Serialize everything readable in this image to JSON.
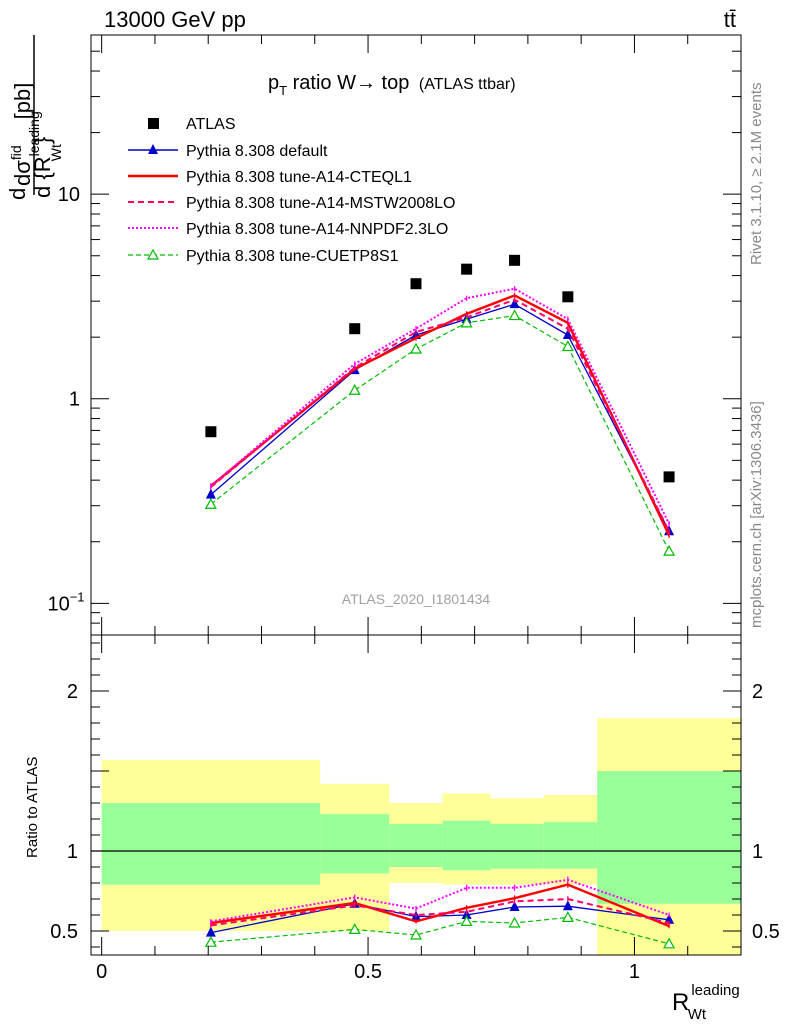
{
  "header": {
    "energy_label": "13000 GeV pp",
    "process_label": "tt̄"
  },
  "side_labels": {
    "rivet": "Rivet 3.1.10, ≥ 2.1M events",
    "mcplots": "mcplots.cern.ch [arXiv:1306.3436]"
  },
  "chart_data": [
    {
      "type": "line",
      "panel": "main",
      "title": "p_T ratio W→ top (ATLAS ttbar)",
      "title_main": "p",
      "title_sub": "T",
      "title_rest": " ratio W→ top",
      "title_small": "(ATLAS ttbar)",
      "watermark": "ATLAS_2020_I1801434",
      "ylabel_parts": {
        "d_num": "d",
        "sigma": "dσ",
        "sup": "fid",
        "unit": "[pb]",
        "den": "d {R",
        "den_sup": "leading",
        "den_sub": "Wt",
        "close": "}"
      },
      "yscale": "log",
      "ylim": [
        0.07,
        60
      ],
      "xlim": [
        -0.02,
        1.2
      ],
      "y_ticks": [
        {
          "value": 0.1,
          "label": "10",
          "sup": "−1"
        },
        {
          "value": 1,
          "label": "1"
        },
        {
          "value": 10,
          "label": "10"
        }
      ],
      "x": [
        0.205,
        0.475,
        0.59,
        0.685,
        0.775,
        0.875,
        1.065
      ],
      "data": {
        "name": "ATLAS",
        "values": [
          0.69,
          2.2,
          3.65,
          4.3,
          4.75,
          3.15,
          0.415
        ]
      },
      "series": [
        {
          "name": "Pythia 8.308 default",
          "color": "#0000cc",
          "style": "solid",
          "marker": "triangle-filled",
          "values": [
            0.34,
            1.38,
            2.05,
            2.45,
            2.9,
            2.05,
            0.225
          ]
        },
        {
          "name": "Pythia 8.308 tune-A14-CTEQL1",
          "color": "#ff0000",
          "style": "solid-thick",
          "marker": "none",
          "values": [
            0.375,
            1.4,
            1.98,
            2.6,
            3.2,
            2.35,
            0.215
          ]
        },
        {
          "name": "Pythia 8.308 tune-A14-MSTW2008LO",
          "color": "#ff0066",
          "style": "dashed",
          "marker": "none",
          "values": [
            0.37,
            1.42,
            2.12,
            2.5,
            3.05,
            2.2,
            0.225
          ]
        },
        {
          "name": "Pythia 8.308 tune-A14-NNPDF2.3LO",
          "color": "#ff00ff",
          "style": "dotted",
          "marker": "none",
          "values": [
            0.375,
            1.48,
            2.2,
            3.1,
            3.45,
            2.45,
            0.245
          ]
        },
        {
          "name": "Pythia 8.308 tune-CUETP8S1",
          "color": "#00bb00",
          "style": "dashed-thin",
          "marker": "triangle-open",
          "values": [
            0.305,
            1.1,
            1.75,
            2.35,
            2.55,
            1.8,
            0.18
          ]
        }
      ]
    },
    {
      "type": "line",
      "panel": "ratio",
      "ylabel": "Ratio to ATLAS",
      "xlabel_main": "R",
      "xlabel_sup": "leading",
      "xlabel_sub": "Wt",
      "ylim": [
        0.35,
        2.35
      ],
      "xlim": [
        -0.02,
        1.2
      ],
      "y_ticks": [
        {
          "value": 0.5,
          "label": "0.5"
        },
        {
          "value": 1,
          "label": "1"
        },
        {
          "value": 2,
          "label": "2"
        }
      ],
      "x_ticks": [
        {
          "value": 0,
          "label": "0"
        },
        {
          "value": 0.5,
          "label": "0.5"
        },
        {
          "value": 1,
          "label": "1"
        }
      ],
      "uncertainty_bands": [
        {
          "x_range": [
            0.0,
            0.41
          ],
          "yellow": [
            0.5,
            1.57
          ],
          "green": [
            0.79,
            1.3
          ]
        },
        {
          "x_range": [
            0.41,
            0.54
          ],
          "yellow": [
            0.5,
            1.42
          ],
          "green": [
            0.86,
            1.23
          ]
        },
        {
          "x_range": [
            0.54,
            0.64
          ],
          "yellow": [
            0.8,
            1.3
          ],
          "green": [
            0.9,
            1.17
          ]
        },
        {
          "x_range": [
            0.64,
            0.73
          ],
          "yellow": [
            0.79,
            1.36
          ],
          "green": [
            0.88,
            1.19
          ]
        },
        {
          "x_range": [
            0.73,
            0.83
          ],
          "yellow": [
            0.79,
            1.33
          ],
          "green": [
            0.89,
            1.17
          ]
        },
        {
          "x_range": [
            0.83,
            0.93
          ],
          "yellow": [
            0.79,
            1.35
          ],
          "green": [
            0.89,
            1.18
          ]
        },
        {
          "x_range": [
            0.93,
            1.2
          ],
          "yellow": [
            0.35,
            1.83
          ],
          "green": [
            0.67,
            1.5
          ]
        }
      ],
      "x": [
        0.205,
        0.475,
        0.59,
        0.685,
        0.775,
        0.875,
        1.065
      ],
      "series": [
        {
          "name": "Pythia 8.308 default",
          "values": [
            0.49,
            0.67,
            0.59,
            0.6,
            0.65,
            0.655,
            0.57
          ]
        },
        {
          "name": "Pythia 8.308 tune-A14-CTEQL1",
          "values": [
            0.55,
            0.675,
            0.56,
            0.645,
            0.705,
            0.79,
            0.53
          ]
        },
        {
          "name": "Pythia 8.308 tune-A14-MSTW2008LO",
          "values": [
            0.535,
            0.66,
            0.6,
            0.62,
            0.685,
            0.7,
            0.55
          ]
        },
        {
          "name": "Pythia 8.308 tune-A14-NNPDF2.3LO",
          "values": [
            0.56,
            0.71,
            0.64,
            0.77,
            0.77,
            0.82,
            0.6
          ]
        },
        {
          "name": "Pythia 8.308 tune-CUETP8S1",
          "values": [
            0.43,
            0.51,
            0.475,
            0.56,
            0.55,
            0.585,
            0.42
          ]
        }
      ]
    }
  ]
}
